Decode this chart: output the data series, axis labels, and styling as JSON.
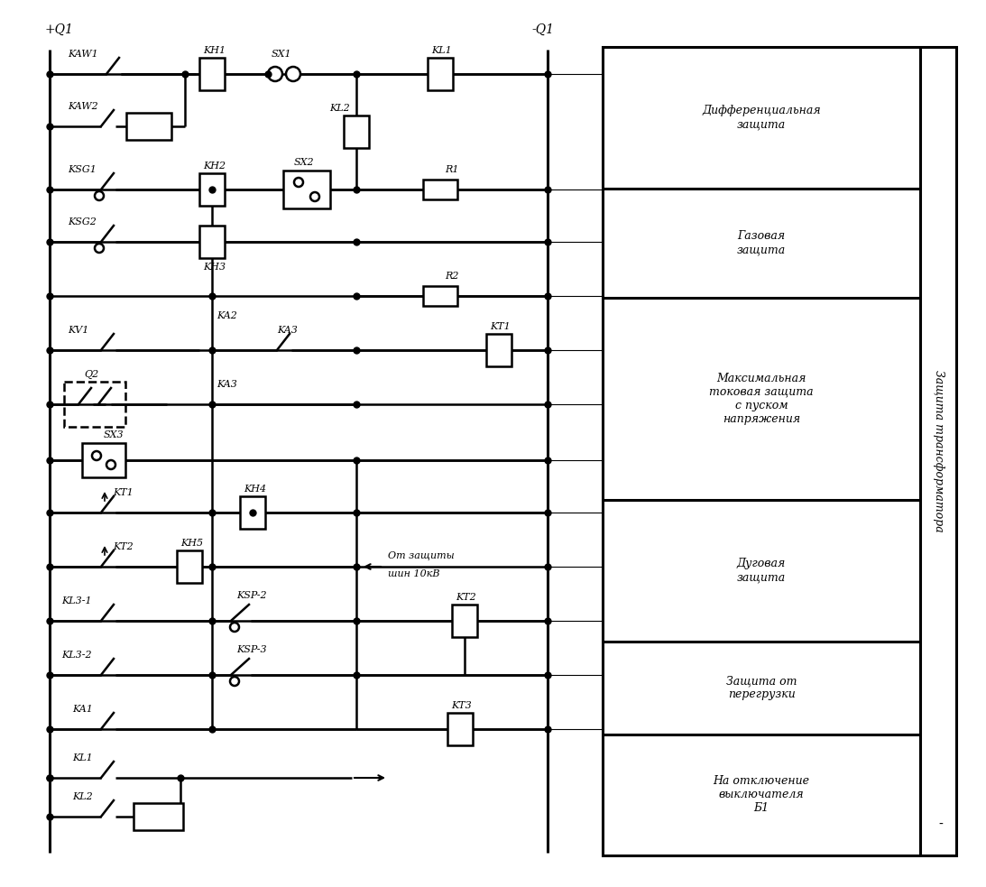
{
  "bg_color": "#ffffff",
  "line_color": "#000000",
  "lw": 1.8,
  "lw2": 2.2,
  "fig_width": 10.93,
  "fig_height": 9.83,
  "right_panel_sections": [
    {
      "label": "Дифференциальная\nзащита",
      "hf": 0.175
    },
    {
      "label": "Газовая\nзащита",
      "hf": 0.135
    },
    {
      "label": "Максимальная\nтоковая защита\nс пуском\nнапряжения",
      "hf": 0.25
    },
    {
      "label": "Дуговая\nзащита",
      "hf": 0.175
    },
    {
      "label": "Защита от\nперегрузки",
      "hf": 0.115
    },
    {
      "label": "На отключение\nвыключателя\nБ1",
      "hf": 0.15
    }
  ],
  "side_label": "Защита трансформатора"
}
